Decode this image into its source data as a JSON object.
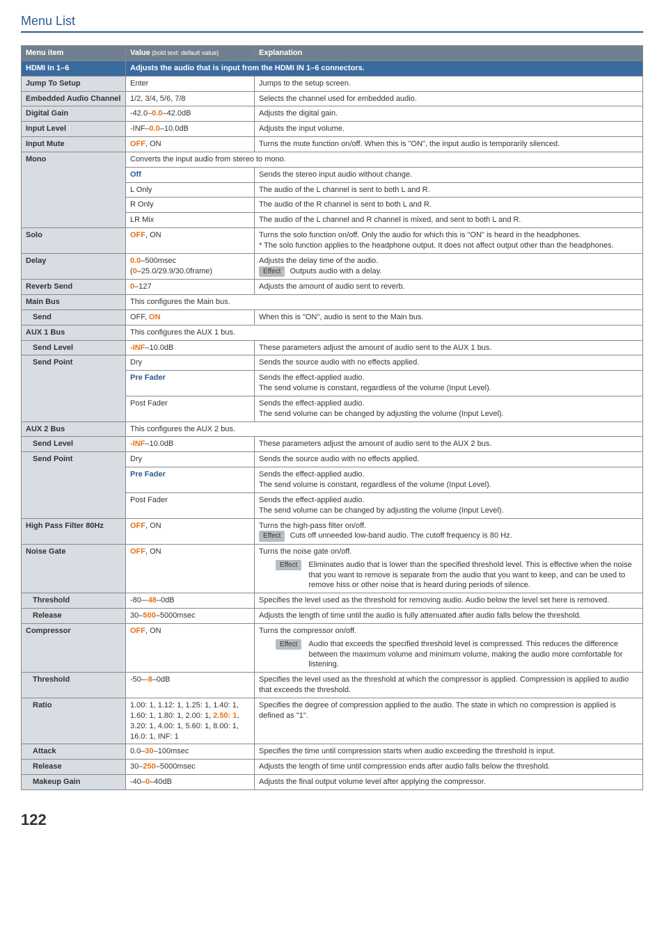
{
  "pageTitle": "Menu List",
  "headers": {
    "menu": "Menu item",
    "value": "Value",
    "valueNote": " (bold text: default value)",
    "expl": "Explanation"
  },
  "rows": [
    {
      "kind": "section",
      "cells": [
        {
          "html": "HDMI In 1–6"
        },
        {
          "html": "Adjusts the audio that is input from the HDMI IN 1–6 connectors.",
          "colspan": 2
        }
      ]
    },
    {
      "kind": "item",
      "cells": [
        {
          "html": "Jump To Setup",
          "menu": true
        },
        {
          "html": "Enter"
        },
        {
          "html": "Jumps to the setup screen."
        }
      ]
    },
    {
      "kind": "item",
      "cells": [
        {
          "html": "Embedded Audio Channel",
          "menu": true
        },
        {
          "html": "1/2, 3/4, 5/6, 7/8"
        },
        {
          "html": "Selects the channel used for embedded audio."
        }
      ]
    },
    {
      "kind": "item",
      "cells": [
        {
          "html": "Digital Gain",
          "menu": true
        },
        {
          "html": "-42.0–<span class='orange'>0.0</span>–42.0dB"
        },
        {
          "html": "Adjusts the digital gain."
        }
      ]
    },
    {
      "kind": "item",
      "cells": [
        {
          "html": "Input Level",
          "menu": true
        },
        {
          "html": "-INF–<span class='orange'>0.0</span>–10.0dB"
        },
        {
          "html": "Adjusts the input volume."
        }
      ]
    },
    {
      "kind": "item",
      "cells": [
        {
          "html": "Input Mute",
          "menu": true
        },
        {
          "html": "<span class='orange'>OFF</span>, ON"
        },
        {
          "html": "Turns the mute function on/off. When this is \"ON\", the input audio is temporarily silenced."
        }
      ]
    },
    {
      "kind": "item",
      "cells": [
        {
          "html": "Mono",
          "menu": true,
          "rowspan": 5
        },
        {
          "html": "Converts the input audio from stereo to mono.",
          "colspan": 2
        }
      ]
    },
    {
      "kind": "item",
      "cells": [
        {
          "html": "<span class='blue'>Off</span>"
        },
        {
          "html": "Sends the stereo input audio without change."
        }
      ]
    },
    {
      "kind": "item",
      "cells": [
        {
          "html": "L Only"
        },
        {
          "html": "The audio of the L channel is sent to both L and R."
        }
      ]
    },
    {
      "kind": "item",
      "cells": [
        {
          "html": "R Only"
        },
        {
          "html": "The audio of the R channel is sent to both L and R."
        }
      ]
    },
    {
      "kind": "item",
      "cells": [
        {
          "html": "LR Mix"
        },
        {
          "html": "The audio of the L channel and R channel is mixed, and sent to both L and R."
        }
      ]
    },
    {
      "kind": "item",
      "cells": [
        {
          "html": "Solo",
          "menu": true
        },
        {
          "html": "<span class='orange'>OFF</span>, ON"
        },
        {
          "html": "Turns the solo function on/off. Only the audio for which this is \"ON\" is heard in the headphones.<br>* The solo function applies to the headphone output. It does not affect output other than the headphones."
        }
      ]
    },
    {
      "kind": "item",
      "cells": [
        {
          "html": "Delay",
          "menu": true
        },
        {
          "html": "<span class='orange'>0.0</span>–500msec<br>(<span class='orange'>0</span>–25.0/29.9/30.0frame)"
        },
        {
          "html": "Adjusts the delay time of the audio.<br><span class='effect-badge'>Effect</span> Outputs audio with a delay."
        }
      ]
    },
    {
      "kind": "item",
      "cells": [
        {
          "html": "Reverb Send",
          "menu": true
        },
        {
          "html": "<span class='orange'>0</span>–127"
        },
        {
          "html": "Adjusts the amount of audio sent to reverb."
        }
      ]
    },
    {
      "kind": "item",
      "cells": [
        {
          "html": "Main Bus",
          "menu": true
        },
        {
          "html": "This configures the Main bus.",
          "colspan": 2
        }
      ]
    },
    {
      "kind": "item",
      "cells": [
        {
          "html": "Send",
          "menu": true,
          "indent": 1
        },
        {
          "html": "OFF, <span class='orange'>ON</span>"
        },
        {
          "html": "When this is \"ON\", audio is sent to the Main bus."
        }
      ]
    },
    {
      "kind": "item",
      "cells": [
        {
          "html": "AUX 1 Bus",
          "menu": true
        },
        {
          "html": "This configures the AUX 1 bus.",
          "colspan": 2
        }
      ]
    },
    {
      "kind": "item",
      "cells": [
        {
          "html": "Send Level",
          "menu": true,
          "indent": 1
        },
        {
          "html": "<span class='orange'>-INF</span>–10.0dB"
        },
        {
          "html": "These parameters adjust the amount of audio sent to the AUX 1 bus."
        }
      ]
    },
    {
      "kind": "item",
      "cells": [
        {
          "html": "Send Point",
          "menu": true,
          "indent": 1,
          "rowspan": 3
        },
        {
          "html": "Dry"
        },
        {
          "html": "Sends the source audio with no effects applied."
        }
      ]
    },
    {
      "kind": "item",
      "cells": [
        {
          "html": "<span class='blue'>Pre Fader</span>"
        },
        {
          "html": "Sends the effect-applied audio.<br>The send volume is constant, regardless of the volume (Input Level)."
        }
      ]
    },
    {
      "kind": "item",
      "cells": [
        {
          "html": "Post Fader"
        },
        {
          "html": "Sends the effect-applied audio.<br>The send volume can be changed by adjusting the volume (Input Level)."
        }
      ]
    },
    {
      "kind": "item",
      "cells": [
        {
          "html": "AUX 2 Bus",
          "menu": true
        },
        {
          "html": "This configures the AUX 2 bus.",
          "colspan": 2
        }
      ]
    },
    {
      "kind": "item",
      "cells": [
        {
          "html": "Send Level",
          "menu": true,
          "indent": 1
        },
        {
          "html": "<span class='orange'>-INF</span>–10.0dB"
        },
        {
          "html": "These parameters adjust the amount of audio sent to the AUX 2 bus."
        }
      ]
    },
    {
      "kind": "item",
      "cells": [
        {
          "html": "Send Point",
          "menu": true,
          "indent": 1,
          "rowspan": 3
        },
        {
          "html": "Dry"
        },
        {
          "html": "Sends the source audio with no effects applied."
        }
      ]
    },
    {
      "kind": "item",
      "cells": [
        {
          "html": "<span class='blue'>Pre Fader</span>"
        },
        {
          "html": "Sends the effect-applied audio.<br>The send volume is constant, regardless of the volume (Input Level)."
        }
      ]
    },
    {
      "kind": "item",
      "cells": [
        {
          "html": "Post Fader"
        },
        {
          "html": "Sends the effect-applied audio.<br>The send volume can be changed by adjusting the volume (Input Level)."
        }
      ]
    },
    {
      "kind": "item",
      "cells": [
        {
          "html": "High Pass Filter 80Hz",
          "menu": true
        },
        {
          "html": "<span class='orange'>OFF</span>, ON"
        },
        {
          "html": "Turns the high-pass filter on/off.<br><span class='effect-badge'>Effect</span> Cuts off unneeded low-band audio. The cutoff frequency is 80 Hz."
        }
      ]
    },
    {
      "kind": "item",
      "cells": [
        {
          "html": "Noise Gate",
          "menu": true
        },
        {
          "html": "<span class='orange'>OFF</span>, ON"
        },
        {
          "html": "Turns the noise gate on/off.<div class='effect-block'><span class='effect-badge'>Effect</span><span class='effect-text'>Eliminates audio that is lower than the specified threshold level. This is effective when the noise that you want to remove is separate from the audio that you want to keep, and can be used to remove hiss or other noise that is heard during periods of silence.</span></div>"
        }
      ]
    },
    {
      "kind": "item",
      "cells": [
        {
          "html": "Threshold",
          "menu": true,
          "indent": 1
        },
        {
          "html": "-80–<span class='orange'>-48</span>–0dB"
        },
        {
          "html": "Specifies the level used as the threshold for removing audio. Audio below the level set here is removed."
        }
      ]
    },
    {
      "kind": "item",
      "cells": [
        {
          "html": "Release",
          "menu": true,
          "indent": 1
        },
        {
          "html": "30–<span class='orange'>500</span>–5000msec"
        },
        {
          "html": "Adjusts the length of time until the audio is fully attenuated after audio falls below the threshold."
        }
      ]
    },
    {
      "kind": "item",
      "cells": [
        {
          "html": "Compressor",
          "menu": true
        },
        {
          "html": "<span class='orange'>OFF</span>, ON"
        },
        {
          "html": "Turns the compressor on/off.<div class='effect-block'><span class='effect-badge'>Effect</span><span class='effect-text'>Audio that exceeds the specified threshold level is compressed. This reduces the difference between the maximum volume and minimum volume, making the audio more comfortable for listening.</span></div>"
        }
      ]
    },
    {
      "kind": "item",
      "cells": [
        {
          "html": "Threshold",
          "menu": true,
          "indent": 1
        },
        {
          "html": "-50–<span class='orange'>-8</span>–0dB"
        },
        {
          "html": "Specifies the level used as the threshold at which the compressor is applied. Compression is applied to audio that exceeds the threshold."
        }
      ]
    },
    {
      "kind": "item",
      "cells": [
        {
          "html": "Ratio",
          "menu": true,
          "indent": 1
        },
        {
          "html": "1.00: 1, 1.12: 1, 1.25: 1, 1.40: 1, 1.60: 1, 1.80: 1, 2.00: 1, <span class='orange'>2.50: 1</span>, 3.20: 1, 4.00: 1, 5.60: 1, 8.00: 1, 16.0: 1, INF: 1"
        },
        {
          "html": "Specifies the degree of compression applied to the audio. The state in which no compression is applied is defined as \"1\"."
        }
      ]
    },
    {
      "kind": "item",
      "cells": [
        {
          "html": "Attack",
          "menu": true,
          "indent": 1
        },
        {
          "html": "0.0–<span class='orange'>30</span>–100msec"
        },
        {
          "html": "Specifies the time until compression starts when audio exceeding the threshold is input."
        }
      ]
    },
    {
      "kind": "item",
      "cells": [
        {
          "html": "Release",
          "menu": true,
          "indent": 1
        },
        {
          "html": "30–<span class='orange'>250</span>–5000msec"
        },
        {
          "html": "Adjusts the length of time until compression ends after audio falls below the threshold."
        }
      ]
    },
    {
      "kind": "item",
      "cells": [
        {
          "html": "Makeup Gain",
          "menu": true,
          "indent": 1
        },
        {
          "html": "-40–<span class='orange'>0</span>–40dB"
        },
        {
          "html": "Adjusts the final output volume level after applying the compressor."
        }
      ]
    }
  ],
  "pageNumber": "122"
}
